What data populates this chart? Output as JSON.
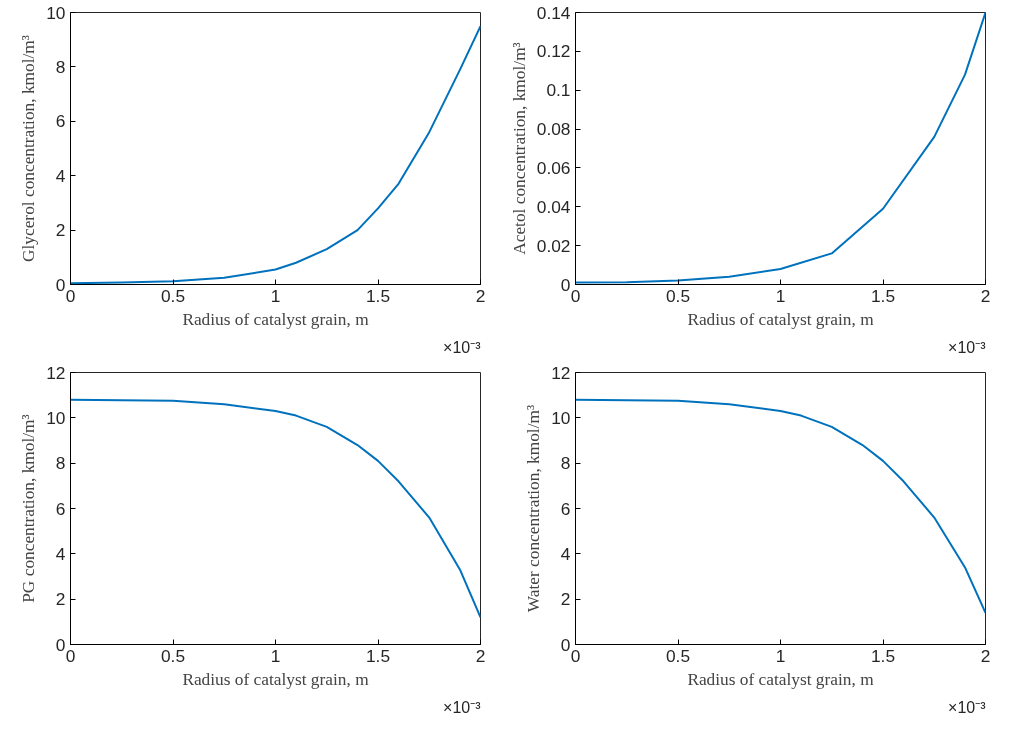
{
  "chart_data": [
    {
      "type": "line",
      "xlabel": "Radius of catalyst grain, m",
      "ylabel": "Glycerol concentration, kmol/m³",
      "annotations": [
        "×10⁻³"
      ],
      "x": [
        0,
        0.25,
        0.5,
        0.75,
        1,
        1.1,
        1.25,
        1.4,
        1.5,
        1.6,
        1.75,
        1.9,
        2
      ],
      "series": [
        {
          "color": "#0072bd",
          "values": [
            0.05,
            0.07,
            0.12,
            0.25,
            0.55,
            0.8,
            1.3,
            2.0,
            2.8,
            3.7,
            5.6,
            7.9,
            9.5
          ]
        }
      ],
      "xlim": [
        0,
        2
      ],
      "xticks": [
        0,
        0.5,
        1,
        1.5,
        2
      ],
      "ylim": [
        0,
        10
      ],
      "yticks": [
        0,
        2,
        4,
        6,
        8,
        10
      ],
      "grid": false
    },
    {
      "type": "line",
      "xlabel": "Radius of catalyst grain, m",
      "ylabel": "Acetol concentration, kmol/m³",
      "annotations": [
        "×10⁻³"
      ],
      "x": [
        0,
        0.25,
        0.5,
        0.75,
        1,
        1.25,
        1.5,
        1.75,
        1.9,
        2
      ],
      "series": [
        {
          "color": "#0072bd",
          "values": [
            0.001,
            0.0012,
            0.002,
            0.004,
            0.008,
            0.016,
            0.039,
            0.076,
            0.108,
            0.14
          ]
        }
      ],
      "xlim": [
        0,
        2
      ],
      "xticks": [
        0,
        0.5,
        1,
        1.5,
        2
      ],
      "ylim": [
        0,
        0.14
      ],
      "yticks": [
        0,
        0.02,
        0.04,
        0.06,
        0.08,
        0.1,
        0.12,
        0.14
      ],
      "grid": false
    },
    {
      "type": "line",
      "xlabel": "Radius of catalyst grain, m",
      "ylabel": "PG concentration, kmol/m³",
      "annotations": [
        "×10⁻³"
      ],
      "x": [
        0,
        0.25,
        0.5,
        0.75,
        1,
        1.1,
        1.25,
        1.4,
        1.5,
        1.6,
        1.75,
        1.9,
        2
      ],
      "series": [
        {
          "color": "#0072bd",
          "values": [
            10.8,
            10.78,
            10.75,
            10.6,
            10.3,
            10.1,
            9.6,
            8.8,
            8.1,
            7.2,
            5.6,
            3.3,
            1.2
          ]
        }
      ],
      "xlim": [
        0,
        2
      ],
      "xticks": [
        0,
        0.5,
        1,
        1.5,
        2
      ],
      "ylim": [
        0,
        12
      ],
      "yticks": [
        0,
        2,
        4,
        6,
        8,
        10,
        12
      ],
      "grid": false
    },
    {
      "type": "line",
      "xlabel": "Radius of catalyst grain, m",
      "ylabel": "Water concentration, kmol/m³",
      "annotations": [
        "×10⁻³"
      ],
      "x": [
        0,
        0.25,
        0.5,
        0.75,
        1,
        1.1,
        1.25,
        1.4,
        1.5,
        1.6,
        1.75,
        1.9,
        2
      ],
      "series": [
        {
          "color": "#0072bd",
          "values": [
            10.8,
            10.78,
            10.75,
            10.6,
            10.3,
            10.1,
            9.6,
            8.8,
            8.1,
            7.2,
            5.6,
            3.4,
            1.4
          ]
        }
      ],
      "xlim": [
        0,
        2
      ],
      "xticks": [
        0,
        0.5,
        1,
        1.5,
        2
      ],
      "ylim": [
        0,
        12
      ],
      "yticks": [
        0,
        2,
        4,
        6,
        8,
        10,
        12
      ],
      "grid": false
    }
  ]
}
